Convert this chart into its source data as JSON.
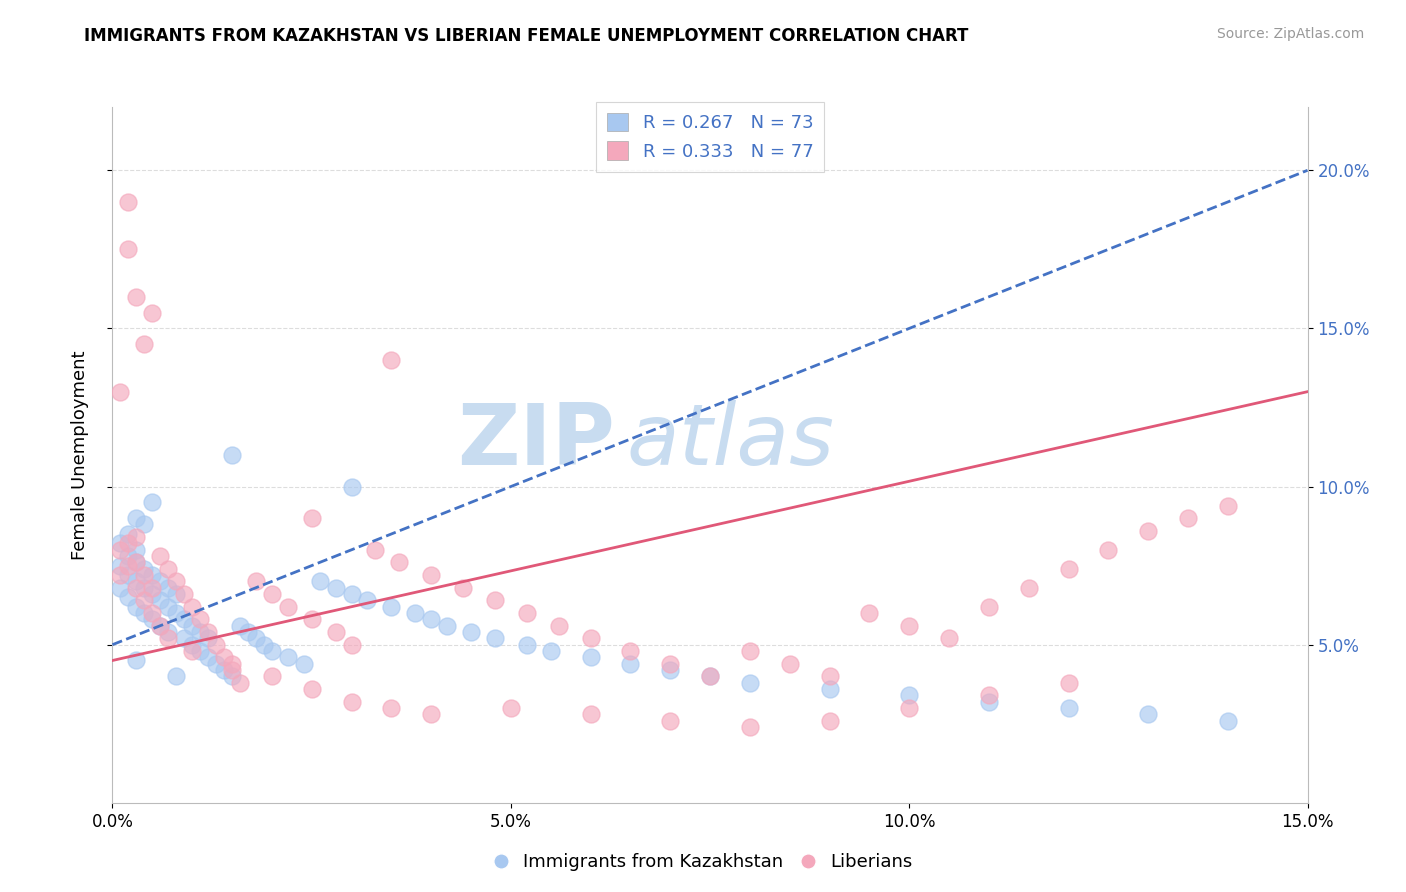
{
  "title": "IMMIGRANTS FROM KAZAKHSTAN VS LIBERIAN FEMALE UNEMPLOYMENT CORRELATION CHART",
  "source": "Source: ZipAtlas.com",
  "ylabel": "Female Unemployment",
  "legend_label1": "Immigrants from Kazakhstan",
  "legend_label2": "Liberians",
  "R1": 0.267,
  "N1": 73,
  "R2": 0.333,
  "N2": 77,
  "xlim": [
    0.0,
    0.15
  ],
  "ylim": [
    0.0,
    0.22
  ],
  "xticks": [
    0.0,
    0.05,
    0.1,
    0.15
  ],
  "yticks": [
    0.05,
    0.1,
    0.15,
    0.2
  ],
  "xtick_labels": [
    "0.0%",
    "5.0%",
    "10.0%",
    "15.0%"
  ],
  "ytick_labels": [
    "5.0%",
    "10.0%",
    "15.0%",
    "20.0%"
  ],
  "color_blue": "#A8C8F0",
  "color_pink": "#F4A8BC",
  "trendline_blue": "#4472C4",
  "trendline_pink": "#E05878",
  "background": "#FFFFFF",
  "watermark_zip": "ZIP",
  "watermark_atlas": "atlas",
  "watermark_color_zip": "#C8DCF0",
  "watermark_color_atlas": "#C8DCF0",
  "blue_scatter_x": [
    0.001,
    0.001,
    0.001,
    0.002,
    0.002,
    0.002,
    0.002,
    0.003,
    0.003,
    0.003,
    0.003,
    0.003,
    0.004,
    0.004,
    0.004,
    0.004,
    0.005,
    0.005,
    0.005,
    0.006,
    0.006,
    0.006,
    0.007,
    0.007,
    0.007,
    0.008,
    0.008,
    0.009,
    0.009,
    0.01,
    0.01,
    0.011,
    0.011,
    0.012,
    0.012,
    0.013,
    0.014,
    0.015,
    0.016,
    0.017,
    0.018,
    0.019,
    0.02,
    0.022,
    0.024,
    0.026,
    0.028,
    0.03,
    0.032,
    0.035,
    0.038,
    0.04,
    0.042,
    0.045,
    0.048,
    0.052,
    0.055,
    0.06,
    0.065,
    0.07,
    0.075,
    0.08,
    0.09,
    0.1,
    0.11,
    0.12,
    0.13,
    0.14,
    0.03,
    0.015,
    0.005,
    0.008,
    0.003
  ],
  "blue_scatter_y": [
    0.075,
    0.082,
    0.068,
    0.072,
    0.078,
    0.065,
    0.085,
    0.07,
    0.076,
    0.062,
    0.08,
    0.09,
    0.068,
    0.074,
    0.06,
    0.088,
    0.066,
    0.072,
    0.058,
    0.064,
    0.07,
    0.056,
    0.062,
    0.068,
    0.054,
    0.06,
    0.066,
    0.052,
    0.058,
    0.05,
    0.056,
    0.048,
    0.054,
    0.046,
    0.052,
    0.044,
    0.042,
    0.04,
    0.056,
    0.054,
    0.052,
    0.05,
    0.048,
    0.046,
    0.044,
    0.07,
    0.068,
    0.066,
    0.064,
    0.062,
    0.06,
    0.058,
    0.056,
    0.054,
    0.052,
    0.05,
    0.048,
    0.046,
    0.044,
    0.042,
    0.04,
    0.038,
    0.036,
    0.034,
    0.032,
    0.03,
    0.028,
    0.026,
    0.1,
    0.11,
    0.095,
    0.04,
    0.045
  ],
  "pink_scatter_x": [
    0.001,
    0.001,
    0.002,
    0.002,
    0.003,
    0.003,
    0.003,
    0.004,
    0.004,
    0.005,
    0.005,
    0.006,
    0.006,
    0.007,
    0.007,
    0.008,
    0.009,
    0.01,
    0.011,
    0.012,
    0.013,
    0.014,
    0.015,
    0.016,
    0.018,
    0.02,
    0.022,
    0.025,
    0.028,
    0.03,
    0.033,
    0.036,
    0.04,
    0.044,
    0.048,
    0.052,
    0.056,
    0.06,
    0.065,
    0.07,
    0.075,
    0.08,
    0.085,
    0.09,
    0.095,
    0.1,
    0.105,
    0.11,
    0.115,
    0.12,
    0.125,
    0.13,
    0.135,
    0.14,
    0.01,
    0.015,
    0.02,
    0.025,
    0.03,
    0.035,
    0.04,
    0.05,
    0.06,
    0.07,
    0.08,
    0.09,
    0.1,
    0.11,
    0.12,
    0.025,
    0.035,
    0.005,
    0.002,
    0.004,
    0.003,
    0.002,
    0.001
  ],
  "pink_scatter_y": [
    0.072,
    0.08,
    0.075,
    0.082,
    0.068,
    0.076,
    0.084,
    0.064,
    0.072,
    0.06,
    0.068,
    0.078,
    0.056,
    0.074,
    0.052,
    0.07,
    0.066,
    0.062,
    0.058,
    0.054,
    0.05,
    0.046,
    0.042,
    0.038,
    0.07,
    0.066,
    0.062,
    0.058,
    0.054,
    0.05,
    0.08,
    0.076,
    0.072,
    0.068,
    0.064,
    0.06,
    0.056,
    0.052,
    0.048,
    0.044,
    0.04,
    0.048,
    0.044,
    0.04,
    0.06,
    0.056,
    0.052,
    0.062,
    0.068,
    0.074,
    0.08,
    0.086,
    0.09,
    0.094,
    0.048,
    0.044,
    0.04,
    0.036,
    0.032,
    0.03,
    0.028,
    0.03,
    0.028,
    0.026,
    0.024,
    0.026,
    0.03,
    0.034,
    0.038,
    0.09,
    0.14,
    0.155,
    0.175,
    0.145,
    0.16,
    0.19,
    0.13
  ]
}
